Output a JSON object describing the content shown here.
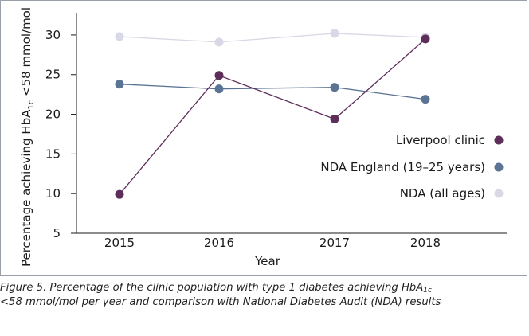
{
  "chart_data": {
    "type": "line",
    "title": "",
    "xlabel": "Year",
    "ylabel_pre": "Percentage achieving HbA",
    "ylabel_sub": "1c",
    "ylabel_post": " <58 mmol/mol",
    "categories": [
      "2015",
      "2016",
      "2017",
      "2018"
    ],
    "ylim": [
      5,
      32
    ],
    "yticks": [
      5,
      10,
      15,
      20,
      25,
      30
    ],
    "grid": false,
    "legend_position": "right",
    "series": [
      {
        "name": "Liverpool clinic",
        "color": "#5e2e5a",
        "values": [
          9.9,
          24.9,
          19.4,
          29.5
        ]
      },
      {
        "name": "NDA England (19–25 years)",
        "color": "#5c7494",
        "values": [
          23.8,
          23.2,
          23.4,
          21.9
        ]
      },
      {
        "name": "NDA (all ages)",
        "color": "#d8d8e6",
        "values": [
          29.8,
          29.1,
          30.2,
          29.7
        ]
      }
    ]
  },
  "caption": {
    "line1_pre": "Figure 5. Percentage of the clinic population with type 1 diabetes achieving HbA",
    "line1_sub": "1c",
    "line2": "<58 mmol/mol per year and comparison with National Diabetes Audit (NDA) results"
  }
}
